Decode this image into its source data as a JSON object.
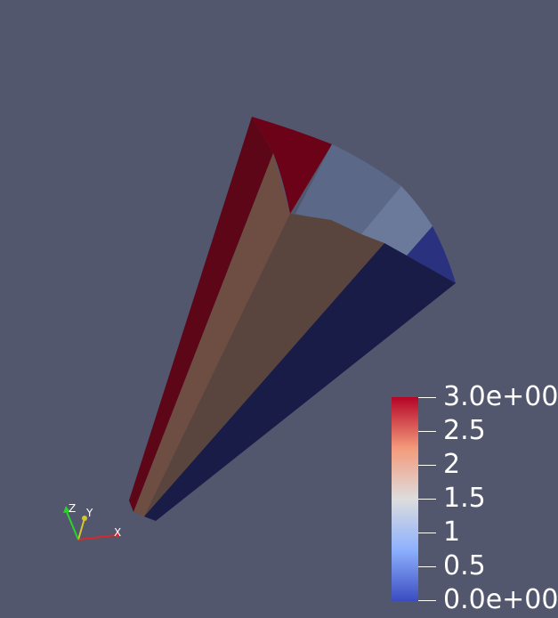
{
  "viewport": {
    "background": "#52576e"
  },
  "colorbar": {
    "range": [
      0,
      3
    ],
    "colormap": "cool-to-warm",
    "colors": [
      "#3b4cc0",
      "#8db0fe",
      "#dddddd",
      "#f49a7b",
      "#b40426"
    ],
    "ticks": [
      {
        "value": 3,
        "label": "3.0e+00"
      },
      {
        "value": 2.5,
        "label": "2.5"
      },
      {
        "value": 2,
        "label": "2"
      },
      {
        "value": 1.5,
        "label": "1.5"
      },
      {
        "value": 1,
        "label": "1"
      },
      {
        "value": 0.5,
        "label": "0.5"
      },
      {
        "value": 0,
        "label": "0.0e+00"
      }
    ]
  },
  "orientation_axes": {
    "x_label": "X",
    "y_label": "Y",
    "z_label": "Z",
    "x_color": "#d42a2a",
    "y_color": "#d4c72a",
    "z_color": "#2ad42a"
  },
  "mesh": {
    "faces": [
      {
        "name": "left-face",
        "color": "#5c0617"
      },
      {
        "name": "top-red-face",
        "color": "#6b0218"
      },
      {
        "name": "top-light-blue-face",
        "color": "#5b6888"
      },
      {
        "name": "top-lighter-blue-face",
        "color": "#6b7a9a"
      },
      {
        "name": "top-dark-blue-face",
        "color": "#2a327f"
      },
      {
        "name": "front-tan-face",
        "color": "#6e4d42"
      },
      {
        "name": "front-brown-face",
        "color": "#5a453e"
      },
      {
        "name": "right-navy-face",
        "color": "#181c47"
      }
    ]
  }
}
